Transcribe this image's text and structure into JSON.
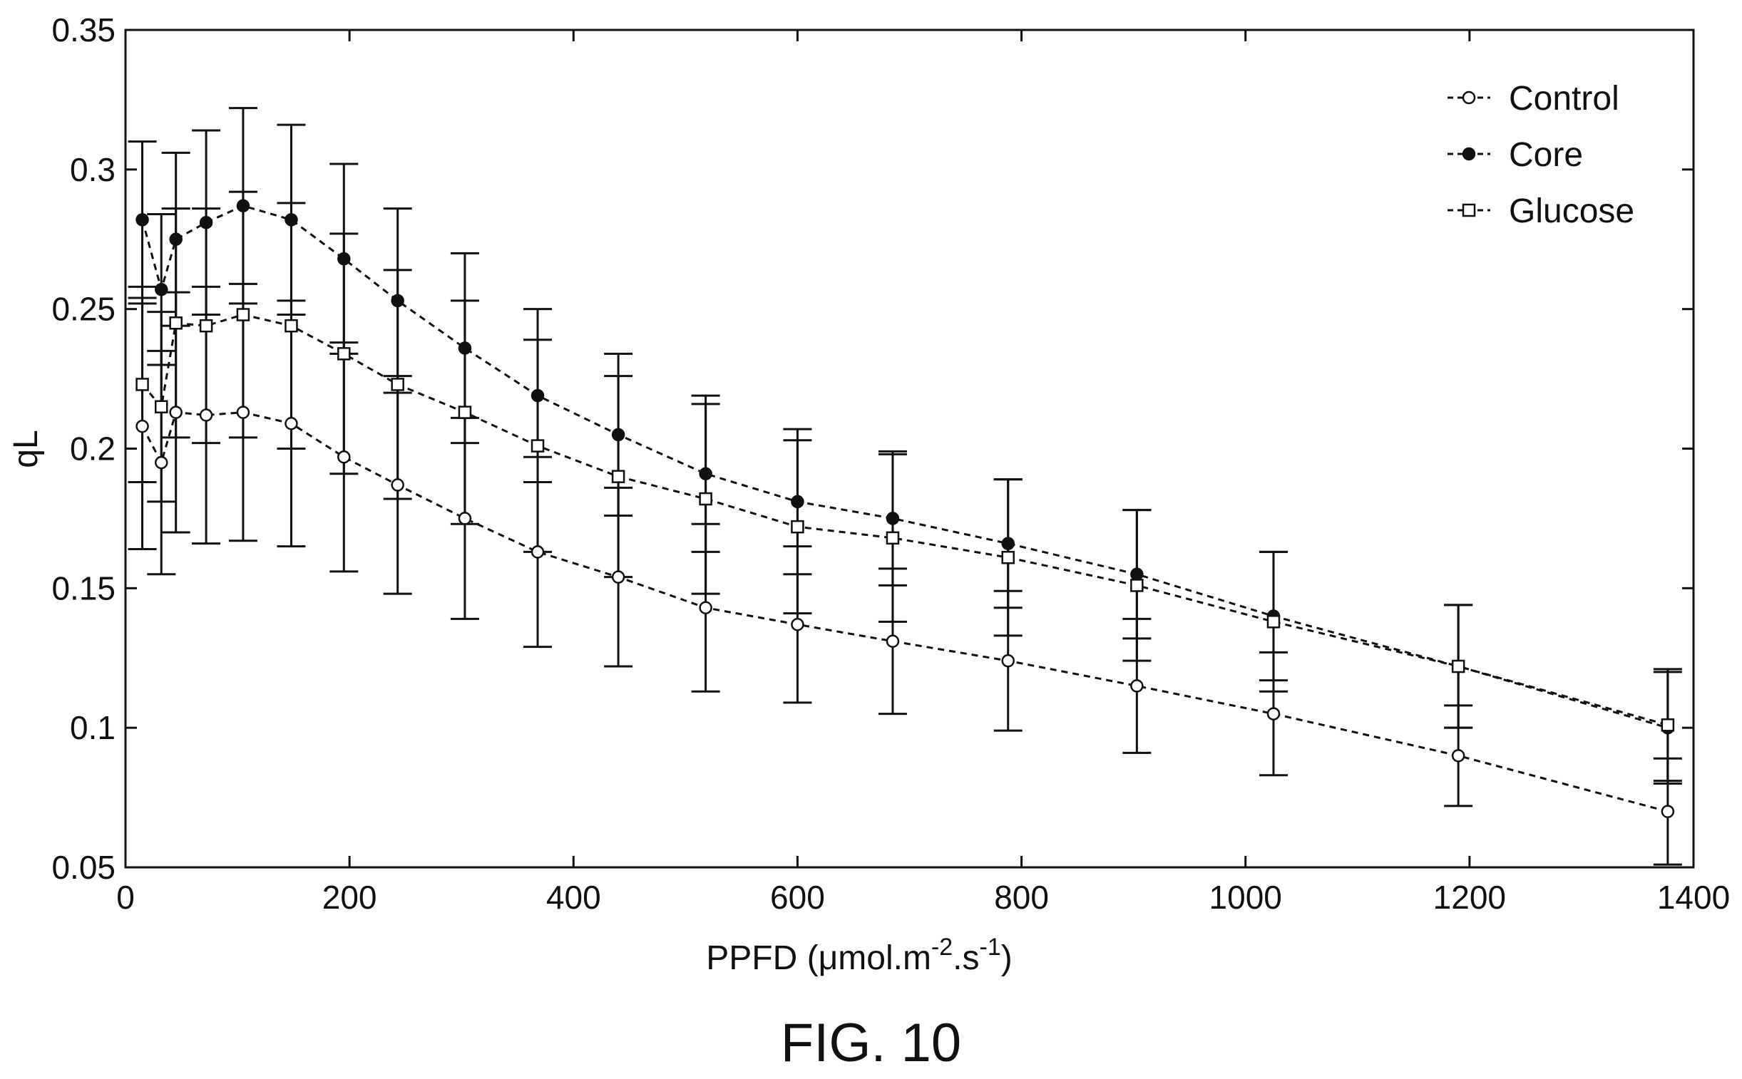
{
  "figure_label": "FIG. 10",
  "chart_data": {
    "type": "line",
    "title": "",
    "xlabel": "PPFD (μmol.m",
    "xlabel_sup1": "-2",
    "xlabel_mid": ".s",
    "xlabel_sup2": "-1",
    "xlabel_end": ")",
    "ylabel": "qL",
    "xlim": [
      0,
      1400
    ],
    "ylim": [
      0.05,
      0.35
    ],
    "xticks": [
      0,
      200,
      400,
      600,
      800,
      1000,
      1200,
      1400
    ],
    "xtick_labels": [
      "0",
      "200",
      "400",
      "600",
      "800",
      "1000",
      "1200",
      "1400"
    ],
    "yticks": [
      0.05,
      0.1,
      0.15,
      0.2,
      0.25,
      0.3,
      0.35
    ],
    "ytick_labels": [
      "0.05",
      "0.1",
      "0.15",
      "0.2",
      "0.25",
      "0.3",
      "0.35"
    ],
    "grid": false,
    "legend_position": "top-right",
    "x": [
      15,
      32,
      45,
      72,
      105,
      148,
      195,
      243,
      303,
      368,
      440,
      518,
      600,
      685,
      788,
      903,
      1025,
      1190,
      1377
    ],
    "series": [
      {
        "name": "Control",
        "marker": "open-circle",
        "values": [
          0.208,
          0.195,
          0.213,
          0.212,
          0.213,
          0.209,
          0.197,
          0.187,
          0.175,
          0.163,
          0.154,
          0.143,
          0.137,
          0.131,
          0.124,
          0.115,
          0.105,
          0.09,
          0.07
        ],
        "errors": [
          0.044,
          0.04,
          0.043,
          0.046,
          0.046,
          0.044,
          0.041,
          0.039,
          0.036,
          0.034,
          0.032,
          0.03,
          0.028,
          0.026,
          0.025,
          0.024,
          0.022,
          0.018,
          0.019
        ]
      },
      {
        "name": "Core",
        "marker": "filled-circle",
        "values": [
          0.282,
          0.257,
          0.275,
          0.281,
          0.287,
          0.282,
          0.268,
          0.253,
          0.236,
          0.219,
          0.205,
          0.191,
          0.181,
          0.175,
          0.166,
          0.155,
          0.14,
          0.122,
          0.1
        ],
        "errors": [
          0.028,
          0.027,
          0.031,
          0.033,
          0.035,
          0.034,
          0.034,
          0.033,
          0.034,
          0.031,
          0.029,
          0.028,
          0.026,
          0.024,
          0.023,
          0.023,
          0.023,
          0.022,
          0.02
        ]
      },
      {
        "name": "Glucose",
        "marker": "open-square",
        "values": [
          0.223,
          0.215,
          0.245,
          0.244,
          0.248,
          0.244,
          0.234,
          0.223,
          0.213,
          0.201,
          0.19,
          0.182,
          0.172,
          0.168,
          0.161,
          0.151,
          0.138,
          0.122,
          0.101
        ],
        "errors": [
          0.035,
          0.034,
          0.041,
          0.042,
          0.044,
          0.044,
          0.043,
          0.041,
          0.04,
          0.038,
          0.036,
          0.034,
          0.031,
          0.03,
          0.028,
          0.027,
          0.025,
          0.022,
          0.02
        ]
      }
    ]
  }
}
